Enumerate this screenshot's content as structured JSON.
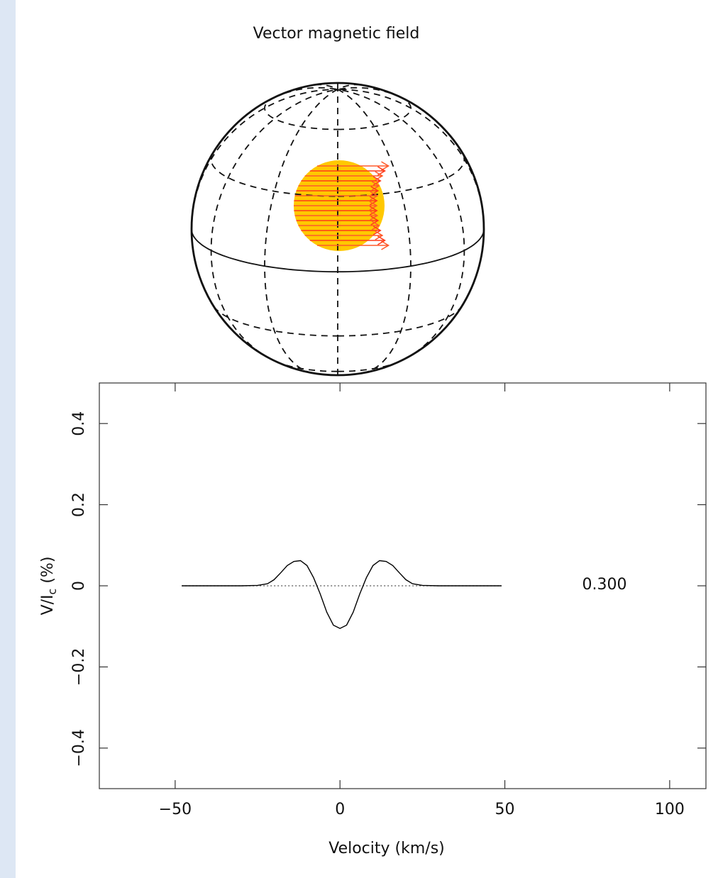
{
  "chart_data": {
    "type": "line",
    "title": "Vector magnetic field",
    "xlabel": "Velocity (km/s)",
    "ylabel": [
      "V/I",
      "c",
      " (%)"
    ],
    "annotation": "0.300",
    "x": [
      -48,
      -40,
      -30,
      -25,
      -22,
      -20,
      -18,
      -16,
      -14,
      -12,
      -10,
      -8,
      -6,
      -4,
      -2,
      0,
      2,
      4,
      6,
      8,
      10,
      12,
      14,
      16,
      18,
      20,
      22,
      25,
      30,
      40,
      49
    ],
    "series": [
      {
        "color": "#000000",
        "values": [
          0,
          0,
          0,
          0.001,
          0.005,
          0.015,
          0.032,
          0.05,
          0.06,
          0.062,
          0.05,
          0.02,
          -0.02,
          -0.065,
          -0.097,
          -0.105,
          -0.097,
          -0.065,
          -0.02,
          0.02,
          0.05,
          0.062,
          0.06,
          0.05,
          0.032,
          0.015,
          0.005,
          0.001,
          0,
          0,
          0
        ]
      }
    ],
    "hline": 0,
    "xlim": [
      -73,
      111
    ],
    "ylim": [
      -0.5,
      0.5
    ],
    "xticks": [
      {
        "value": -50,
        "label": "−50"
      },
      0,
      50,
      100
    ],
    "yticks": [
      {
        "value": -0.4,
        "label": "−0.4"
      },
      {
        "value": -0.2,
        "label": "−0.2"
      },
      0,
      0.2,
      0.4
    ]
  }
}
